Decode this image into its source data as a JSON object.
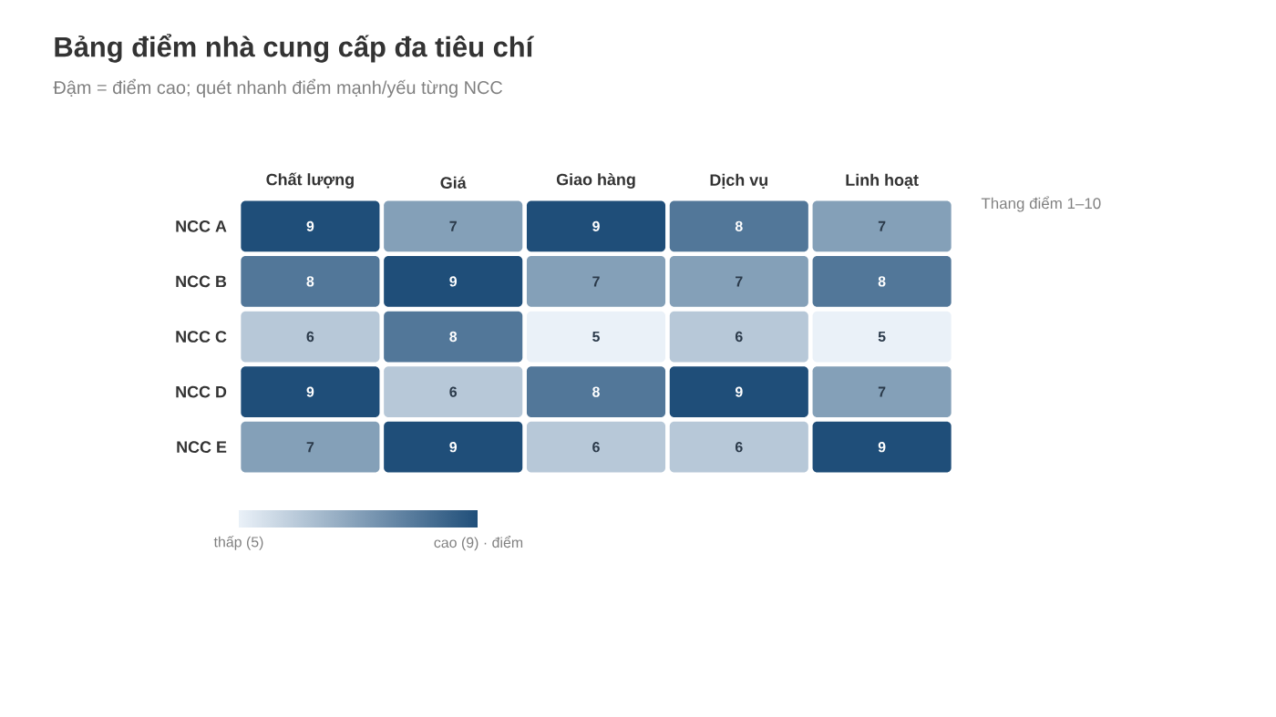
{
  "chart_data": {
    "type": "heatmap",
    "title": "Bảng điểm nhà cung cấp đa tiêu chí",
    "subtitle": "Đậm = điểm cao; quét nhanh điểm mạnh/yếu từng NCC",
    "categories": [
      "Chất lượng",
      "Giá",
      "Giao hàng",
      "Dịch vụ",
      "Linh hoạt"
    ],
    "y_categories": [
      "NCC A",
      "NCC B",
      "NCC C",
      "NCC D",
      "NCC E"
    ],
    "cells": [
      [
        9,
        7,
        9,
        8,
        7
      ],
      [
        8,
        9,
        7,
        7,
        8
      ],
      [
        6,
        8,
        5,
        6,
        5
      ],
      [
        9,
        6,
        8,
        9,
        7
      ],
      [
        7,
        9,
        6,
        6,
        9
      ]
    ],
    "data_labels": true,
    "clim": [
      5,
      9
    ],
    "cticks": [
      {
        "value": 5,
        "label": "thấp (5)"
      },
      {
        "value": 9,
        "label": "cao (9) · điểm"
      }
    ],
    "annotations": [
      "Thang điểm 1–10"
    ]
  }
}
